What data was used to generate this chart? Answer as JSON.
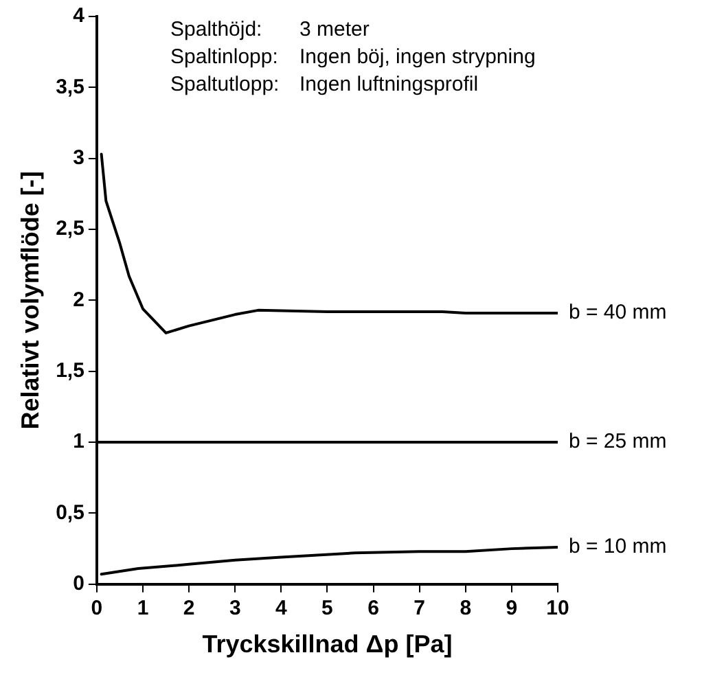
{
  "chart_data": {
    "type": "line",
    "xlabel": "Tryckskillnad Δp [Pa]",
    "ylabel": "Relativt volymflöde [-]",
    "annotations": [
      "Spalthöjd:",
      "3 meter",
      "Spaltinlopp:",
      "Ingen böj, ingen strypning",
      "Spaltutlopp:",
      "Ingen luftningsprofil"
    ],
    "series": [
      {
        "name": "b = 40 mm",
        "color": "#000000",
        "x": [
          0.1,
          0.2,
          0.5,
          0.7,
          1,
          1.5,
          2,
          3,
          3.5,
          5,
          7.5,
          8,
          10
        ],
        "values": [
          3.03,
          2.7,
          2.4,
          2.17,
          1.94,
          1.77,
          1.82,
          1.9,
          1.93,
          1.92,
          1.92,
          1.91,
          1.91
        ]
      },
      {
        "name": "b = 25 mm",
        "color": "#000000",
        "x": [
          0,
          10
        ],
        "values": [
          1,
          1
        ]
      },
      {
        "name": "b = 10 mm",
        "color": "#000000",
        "x": [
          0.1,
          0.9,
          2,
          3,
          4,
          5.6,
          7,
          8,
          9,
          10
        ],
        "values": [
          0.07,
          0.11,
          0.14,
          0.17,
          0.19,
          0.22,
          0.23,
          0.23,
          0.25,
          0.26
        ]
      }
    ],
    "xlim": [
      0,
      10
    ],
    "xticks": [
      0,
      1,
      2,
      3,
      4,
      5,
      6,
      7,
      8,
      9,
      10
    ],
    "ylim": [
      0,
      4
    ],
    "yticks": [
      0,
      {
        "value": 0.5,
        "label": "0,5"
      },
      1,
      {
        "value": 1.5,
        "label": "1,5"
      },
      2,
      {
        "value": 2.5,
        "label": "2,5"
      },
      3,
      {
        "value": 3.5,
        "label": "3,5"
      },
      4
    ],
    "grid": false,
    "legend": false,
    "marker": "none",
    "line_style": "solid"
  }
}
